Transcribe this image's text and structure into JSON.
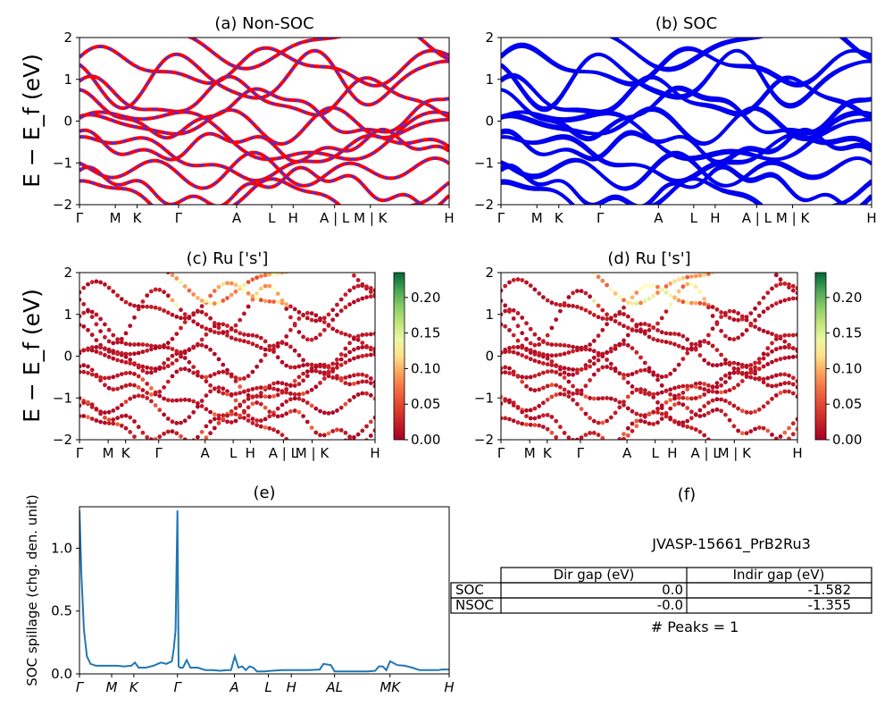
{
  "ylabel_bands": "E − E_f (eV)",
  "chart_data": [
    {
      "id": "a",
      "type": "line",
      "title": "(a) Non-SOC",
      "ylim": [
        -2,
        2
      ],
      "yticks": [
        "2",
        "1",
        "0",
        "−1",
        "−2"
      ],
      "ytick_values": [
        2,
        1,
        0,
        -1,
        -2
      ],
      "kpath_labels": [
        "Γ",
        "M",
        "K",
        "Γ",
        "A",
        "L",
        "H",
        "A | L",
        "M | K",
        "H"
      ],
      "kpath_positions": [
        0,
        0.097,
        0.156,
        0.268,
        0.425,
        0.52,
        0.578,
        0.69,
        0.787,
        1.0
      ],
      "colors": {
        "main": "#ff0000",
        "overlay": "#3333ff"
      }
    },
    {
      "id": "b",
      "type": "line",
      "title": "(b) SOC",
      "ylim": [
        -2,
        2
      ],
      "yticks": [
        "2",
        "1",
        "0",
        "−1",
        "−2"
      ],
      "ytick_values": [
        2,
        1,
        0,
        -1,
        -2
      ],
      "kpath_labels": [
        "Γ",
        "M",
        "K",
        "Γ",
        "A",
        "L",
        "H",
        "A | L",
        "M | K",
        "H"
      ],
      "kpath_positions": [
        0,
        0.097,
        0.156,
        0.268,
        0.425,
        0.52,
        0.578,
        0.69,
        0.787,
        1.0
      ],
      "colors": {
        "main": "#0000ee"
      }
    },
    {
      "id": "c",
      "type": "scatter",
      "title": "(c)  Ru ['s']",
      "ylim": [
        -2,
        2
      ],
      "yticks": [
        "2",
        "1",
        "0",
        "−1",
        "−2"
      ],
      "ytick_values": [
        2,
        1,
        0,
        -1,
        -2
      ],
      "kpath_labels": [
        "Γ",
        "M",
        "K",
        "Γ",
        "A",
        "L",
        "H",
        "A | L",
        "M | K",
        "H"
      ],
      "kpath_positions": [
        0,
        0.097,
        0.156,
        0.268,
        0.425,
        0.52,
        0.578,
        0.69,
        0.787,
        1.0
      ],
      "colorbar": {
        "range": [
          0,
          0.235
        ],
        "ticks": [
          "0.00",
          "0.05",
          "0.10",
          "0.15",
          "0.20"
        ],
        "tick_values": [
          0,
          0.05,
          0.1,
          0.15,
          0.2
        ],
        "colormap": "RdYlGn"
      }
    },
    {
      "id": "d",
      "type": "scatter",
      "title": "(d) Ru ['s']",
      "ylim": [
        -2,
        2
      ],
      "yticks": [
        "2",
        "1",
        "0",
        "−1",
        "−2"
      ],
      "ytick_values": [
        2,
        1,
        0,
        -1,
        -2
      ],
      "kpath_labels": [
        "Γ",
        "M",
        "K",
        "Γ",
        "A",
        "L",
        "H",
        "A | L",
        "M | K",
        "H"
      ],
      "kpath_positions": [
        0,
        0.097,
        0.156,
        0.268,
        0.425,
        0.52,
        0.578,
        0.69,
        0.787,
        1.0
      ],
      "colorbar": {
        "range": [
          0,
          0.235
        ],
        "ticks": [
          "0.00",
          "0.05",
          "0.10",
          "0.15",
          "0.20"
        ],
        "tick_values": [
          0,
          0.05,
          0.1,
          0.15,
          0.2
        ],
        "colormap": "RdYlGn"
      }
    },
    {
      "id": "e",
      "type": "line",
      "title": "(e)",
      "ylabel": "SOC spillage (chg. den. unit)",
      "ylim": [
        0,
        1.33
      ],
      "yticks": [
        "1.0",
        "0.5",
        "0.0"
      ],
      "ytick_values": [
        1.0,
        0.5,
        0.0
      ],
      "kpath_labels": [
        "Γ",
        "M",
        "K",
        "Γ",
        "A",
        "L",
        "H",
        "AL",
        "MK",
        "H"
      ],
      "kpath_positions": [
        0,
        0.087,
        0.147,
        0.265,
        0.419,
        0.511,
        0.573,
        0.69,
        0.84,
        1.0
      ],
      "x": [
        0,
        0.005,
        0.012,
        0.02,
        0.03,
        0.045,
        0.06,
        0.08,
        0.1,
        0.12,
        0.14,
        0.15,
        0.16,
        0.18,
        0.2,
        0.22,
        0.235,
        0.25,
        0.255,
        0.26,
        0.265,
        0.268,
        0.272,
        0.28,
        0.29,
        0.3,
        0.32,
        0.34,
        0.36,
        0.38,
        0.4,
        0.41,
        0.42,
        0.43,
        0.44,
        0.45,
        0.46,
        0.47,
        0.48,
        0.5,
        0.52,
        0.55,
        0.58,
        0.6,
        0.62,
        0.65,
        0.66,
        0.68,
        0.69,
        0.7,
        0.72,
        0.75,
        0.78,
        0.8,
        0.81,
        0.82,
        0.83,
        0.84,
        0.86,
        0.88,
        0.9,
        0.92,
        0.95,
        0.97,
        0.98,
        1.0
      ],
      "y": [
        1.3,
        0.8,
        0.35,
        0.14,
        0.08,
        0.065,
        0.065,
        0.065,
        0.065,
        0.06,
        0.065,
        0.09,
        0.05,
        0.05,
        0.065,
        0.09,
        0.08,
        0.1,
        0.2,
        0.35,
        1.3,
        0.06,
        0.05,
        0.05,
        0.11,
        0.05,
        0.05,
        0.03,
        0.03,
        0.025,
        0.03,
        0.03,
        0.14,
        0.05,
        0.06,
        0.03,
        0.06,
        0.05,
        0.02,
        0.02,
        0.025,
        0.03,
        0.03,
        0.03,
        0.03,
        0.035,
        0.08,
        0.07,
        0.02,
        0.02,
        0.02,
        0.02,
        0.02,
        0.025,
        0.06,
        0.06,
        0.03,
        0.1,
        0.07,
        0.065,
        0.05,
        0.03,
        0.03,
        0.03,
        0.035,
        0.035
      ],
      "colors": {
        "line": "#1f77b4"
      }
    }
  ],
  "panel_f": {
    "title": "(f)",
    "material_id": "JVASP-15661_PrB2Ru3",
    "table": {
      "headers": [
        "Dir gap (eV)",
        "Indir gap (eV)"
      ],
      "rows": [
        {
          "label": "SOC",
          "dir": "0.0",
          "indir": "-1.582"
        },
        {
          "label": "NSOC",
          "dir": "-0.0",
          "indir": "-1.355"
        }
      ]
    },
    "peaks": "# Peaks = 1"
  }
}
